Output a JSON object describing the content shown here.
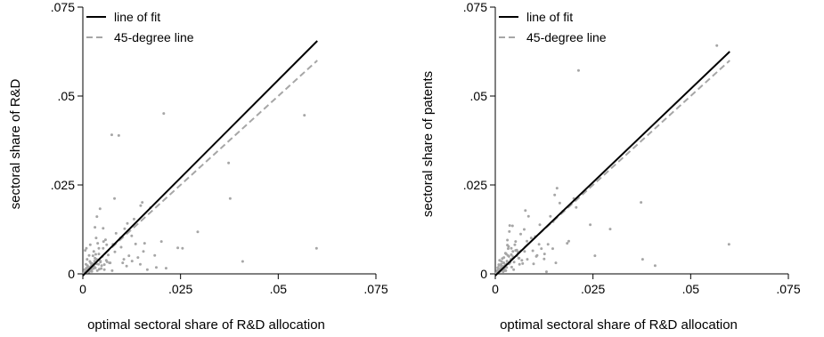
{
  "chart_data": [
    {
      "type": "scatter",
      "xlabel": "optimal sectoral share of R&D allocation",
      "ylabel": "sectoral share of R&D",
      "xlim": [
        0,
        0.075
      ],
      "ylim": [
        0,
        0.075
      ],
      "x_ticks": [
        0,
        0.025,
        0.05,
        0.075
      ],
      "x_tick_labels": [
        "0",
        ".025",
        ".05",
        ".075"
      ],
      "y_ticks": [
        0,
        0.025,
        0.05,
        0.075
      ],
      "y_tick_labels": [
        "0",
        ".025",
        ".05",
        ".075"
      ],
      "grid": false,
      "legend_position": "top-left",
      "legend": [
        {
          "label": "line of fit",
          "style": "solid",
          "color": "#000000"
        },
        {
          "label": "45-degree line",
          "style": "dashed",
          "color": "#a6a6a6"
        }
      ],
      "fit_line": {
        "x": [
          0,
          0.06
        ],
        "y": [
          -0.0005,
          0.0655
        ]
      },
      "diagonal_line": {
        "x": [
          0,
          0.06
        ],
        "y": [
          0,
          0.06
        ]
      },
      "points": {
        "color": "#a6a6a6",
        "x": [
          0.0003,
          0.0005,
          0.0007,
          0.0009,
          0.001,
          0.0012,
          0.0014,
          0.0015,
          0.0017,
          0.0019,
          0.002,
          0.0021,
          0.0023,
          0.0025,
          0.0027,
          0.003,
          0.0032,
          0.0035,
          0.0037,
          0.004,
          0.0042,
          0.0045,
          0.0048,
          0.005,
          0.0055,
          0.006,
          0.0065,
          0.007,
          0.0008,
          0.0011,
          0.0016,
          0.0022,
          0.0028,
          0.0033,
          0.0038,
          0.0044,
          0.0052,
          0.0058,
          0.0006,
          0.0013,
          0.0018,
          0.0024,
          0.0031,
          0.0036,
          0.0041,
          0.0047,
          0.0053,
          0.0016,
          0.0009,
          0.0026,
          0.0019,
          0.0034,
          0.0029,
          0.0045,
          0.0062,
          0.0074,
          0.0077,
          0.0081,
          0.0085,
          0.0092,
          0.0096,
          0.0102,
          0.0107,
          0.0114,
          0.0118,
          0.0125,
          0.0131,
          0.0135,
          0.0141,
          0.0148,
          0.0152,
          0.0158,
          0.0165,
          0.0173,
          0.0184,
          0.0201,
          0.0213,
          0.0243,
          0.0255,
          0.0294,
          0.0373,
          0.0377,
          0.0409,
          0.0567,
          0.0598,
          0.0207,
          0.0075,
          0.0098,
          0.0035,
          0.0041,
          0.0082,
          0.0031,
          0.0022,
          0.0052,
          0.0068,
          0.0155,
          0.0147,
          0.0105,
          0.0112,
          0.0126,
          0.0188,
          0.0061,
          0.0055
        ],
        "y": [
          0.0004,
          0.0012,
          0.0006,
          0.0016,
          0.0008,
          0.0023,
          0.0011,
          0.0005,
          0.0019,
          0.0009,
          0.0031,
          0.0013,
          0.0007,
          0.0021,
          0.0015,
          0.0036,
          0.0017,
          0.0041,
          0.0009,
          0.0027,
          0.0013,
          0.0033,
          0.0023,
          0.0049,
          0.0026,
          0.0038,
          0.0053,
          0.0031,
          0.0027,
          0.0041,
          0.0052,
          0.0012,
          0.0063,
          0.0055,
          0.0086,
          0.0183,
          0.0128,
          0.0096,
          0.0066,
          0.0018,
          0.0035,
          0.0029,
          0.0131,
          0.0161,
          0.0072,
          0.0015,
          0.0091,
          0.0005,
          0.0072,
          0.0051,
          0.0082,
          0.0101,
          0.0021,
          0.0036,
          0.0034,
          0.0391,
          0.0083,
          0.0212,
          0.0114,
          0.0389,
          0.0101,
          0.0031,
          0.0127,
          0.0142,
          0.0051,
          0.0107,
          0.0154,
          0.0084,
          0.0046,
          0.0192,
          0.0201,
          0.0086,
          0.0012,
          0.0186,
          0.0052,
          0.0091,
          0.0016,
          0.0073,
          0.0072,
          0.0118,
          0.0312,
          0.0212,
          0.0035,
          0.0446,
          0.0072,
          0.0451,
          0.0009,
          0.0075,
          0.0028,
          0.0056,
          0.0062,
          0.0044,
          0.0024,
          0.0072,
          0.0031,
          0.0063,
          0.0027,
          0.0041,
          0.0022,
          0.0036,
          0.0018,
          0.0082,
          0.0012
        ]
      }
    },
    {
      "type": "scatter",
      "xlabel": "optimal sectoral share of R&D allocation",
      "ylabel": "sectoral share of patents",
      "xlim": [
        0,
        0.075
      ],
      "ylim": [
        0,
        0.075
      ],
      "x_ticks": [
        0,
        0.025,
        0.05,
        0.075
      ],
      "x_tick_labels": [
        "0",
        ".025",
        ".05",
        ".075"
      ],
      "y_ticks": [
        0,
        0.025,
        0.05,
        0.075
      ],
      "y_tick_labels": [
        "0",
        ".025",
        ".05",
        ".075"
      ],
      "grid": false,
      "legend_position": "top-left",
      "legend": [
        {
          "label": "line of fit",
          "style": "solid",
          "color": "#000000"
        },
        {
          "label": "45-degree line",
          "style": "dashed",
          "color": "#a6a6a6"
        }
      ],
      "fit_line": {
        "x": [
          0,
          0.06
        ],
        "y": [
          -0.0005,
          0.0625
        ]
      },
      "diagonal_line": {
        "x": [
          0,
          0.06
        ],
        "y": [
          0,
          0.06
        ]
      },
      "points": {
        "color": "#a6a6a6",
        "x": [
          0.0003,
          0.0005,
          0.0007,
          0.0009,
          0.001,
          0.0012,
          0.0014,
          0.0015,
          0.0017,
          0.0019,
          0.002,
          0.0021,
          0.0023,
          0.0025,
          0.0027,
          0.003,
          0.0032,
          0.0035,
          0.0037,
          0.004,
          0.0042,
          0.0045,
          0.0048,
          0.005,
          0.0055,
          0.006,
          0.0065,
          0.007,
          0.0008,
          0.0011,
          0.0016,
          0.0022,
          0.0028,
          0.0033,
          0.0038,
          0.0044,
          0.0052,
          0.0058,
          0.0006,
          0.0013,
          0.0018,
          0.0024,
          0.0031,
          0.0036,
          0.0041,
          0.0047,
          0.0053,
          0.0016,
          0.0009,
          0.0026,
          0.0019,
          0.0034,
          0.0029,
          0.0045,
          0.0062,
          0.0074,
          0.0077,
          0.0081,
          0.0085,
          0.0092,
          0.0096,
          0.0102,
          0.0107,
          0.0114,
          0.0118,
          0.0125,
          0.0131,
          0.0135,
          0.0141,
          0.0148,
          0.0152,
          0.0158,
          0.0165,
          0.0173,
          0.0184,
          0.0201,
          0.0213,
          0.0243,
          0.0255,
          0.0294,
          0.0373,
          0.0377,
          0.0409,
          0.0567,
          0.0598,
          0.0207,
          0.0075,
          0.0098,
          0.0035,
          0.0041,
          0.0082,
          0.0031,
          0.0022,
          0.0052,
          0.0068,
          0.0155,
          0.0147,
          0.0105,
          0.0112,
          0.0126,
          0.0188,
          0.0061,
          0.0055
        ],
        "y": [
          0.0003,
          0.0009,
          0.0018,
          0.0011,
          0.0024,
          0.0007,
          0.0016,
          0.0027,
          0.0012,
          0.0021,
          0.0006,
          0.0031,
          0.0014,
          0.0025,
          0.0009,
          0.0036,
          0.0052,
          0.0028,
          0.0136,
          0.0041,
          0.0019,
          0.0063,
          0.0033,
          0.0082,
          0.0051,
          0.0044,
          0.0112,
          0.0029,
          0.0014,
          0.0038,
          0.0022,
          0.0046,
          0.0056,
          0.0071,
          0.0032,
          0.0135,
          0.0091,
          0.0062,
          0.0017,
          0.0025,
          0.0043,
          0.0009,
          0.0081,
          0.0119,
          0.0054,
          0.0012,
          0.0066,
          0.0035,
          0.0026,
          0.0058,
          0.0011,
          0.0077,
          0.0018,
          0.0048,
          0.0027,
          0.0125,
          0.0178,
          0.0092,
          0.0162,
          0.0101,
          0.0065,
          0.0105,
          0.0052,
          0.0138,
          0.0071,
          0.0042,
          0.0006,
          0.0083,
          0.0162,
          0.0147,
          0.0222,
          0.0241,
          0.0199,
          0.0176,
          0.0086,
          0.0212,
          0.0572,
          0.0138,
          0.0051,
          0.0126,
          0.0201,
          0.0041,
          0.0023,
          0.0642,
          0.0083,
          0.0187,
          0.0063,
          0.0028,
          0.0049,
          0.0072,
          0.0041,
          0.0095,
          0.0031,
          0.0066,
          0.0038,
          0.0031,
          0.0071,
          0.0049,
          0.0083,
          0.0056,
          0.0092,
          0.0044,
          0.0067
        ]
      }
    }
  ]
}
